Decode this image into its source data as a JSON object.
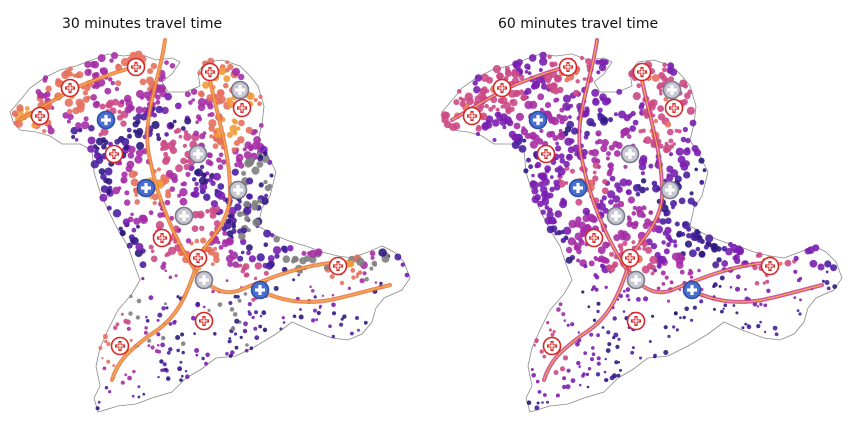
{
  "panels": [
    {
      "id": "left",
      "title": "30 minutes travel time"
    },
    {
      "id": "right",
      "title": "60 minutes travel time"
    }
  ],
  "colors": {
    "background": "#ffffff",
    "outline": "#8a8a8a",
    "no_access": "#808080",
    "ramp": [
      "#2d1b7e",
      "#4a1fa0",
      "#7a1fb0",
      "#a52ea6",
      "#cc4a86",
      "#e4705e",
      "#f29a3c"
    ],
    "hospital_red": "#d62828",
    "hospital_blue": "#4a6fd0"
  },
  "icons": {
    "hospital_red": "hospital-cross-icon",
    "hospital_blue": "hospital-blue-cross-icon",
    "hospital_grey": "hospital-grey-cross-icon"
  }
}
